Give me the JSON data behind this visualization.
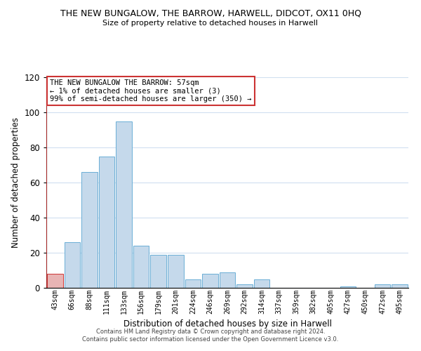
{
  "title": "THE NEW BUNGALOW, THE BARROW, HARWELL, DIDCOT, OX11 0HQ",
  "subtitle": "Size of property relative to detached houses in Harwell",
  "xlabel": "Distribution of detached houses by size in Harwell",
  "ylabel": "Number of detached properties",
  "bar_labels": [
    "43sqm",
    "66sqm",
    "88sqm",
    "111sqm",
    "133sqm",
    "156sqm",
    "179sqm",
    "201sqm",
    "224sqm",
    "246sqm",
    "269sqm",
    "292sqm",
    "314sqm",
    "337sqm",
    "359sqm",
    "382sqm",
    "405sqm",
    "427sqm",
    "450sqm",
    "472sqm",
    "495sqm"
  ],
  "bar_heights": [
    8,
    26,
    66,
    75,
    95,
    24,
    19,
    19,
    5,
    8,
    9,
    2,
    5,
    0,
    0,
    0,
    0,
    1,
    0,
    2,
    2
  ],
  "bar_color": "#c5d9eb",
  "bar_edge_color": "#6aaed6",
  "highlight_bar_index": 0,
  "highlight_color": "#e8b4b4",
  "highlight_edge_color": "#cc3333",
  "annotation_line0": "THE NEW BUNGALOW THE BARROW: 57sqm",
  "annotation_line1": "← 1% of detached houses are smaller (3)",
  "annotation_line2": "99% of semi-detached houses are larger (350) →",
  "annotation_box_color": "#ffffff",
  "annotation_edge_color": "#cc3333",
  "ylim": [
    0,
    120
  ],
  "yticks": [
    0,
    20,
    40,
    60,
    80,
    100,
    120
  ],
  "footer_line1": "Contains HM Land Registry data © Crown copyright and database right 2024.",
  "footer_line2": "Contains public sector information licensed under the Open Government Licence v3.0.",
  "background_color": "#ffffff",
  "grid_color": "#d0dff0"
}
